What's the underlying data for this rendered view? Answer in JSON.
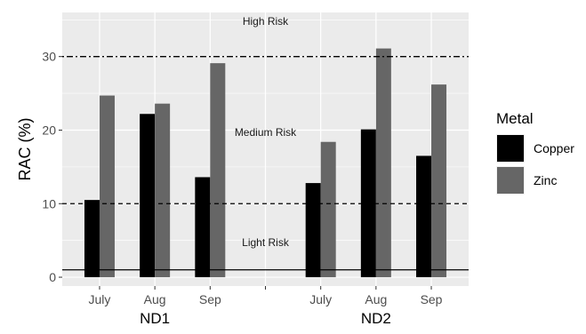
{
  "chart_data": {
    "type": "bar",
    "ylabel": "RAC (%)",
    "ylim": [
      -1.2,
      36
    ],
    "yticks": [
      0,
      10,
      20,
      30
    ],
    "groups": [
      {
        "name": "ND1",
        "categories": [
          "July",
          "Aug",
          "Sep"
        ]
      },
      {
        "name": "ND2",
        "categories": [
          "July",
          "Aug",
          "Sep"
        ]
      }
    ],
    "series": [
      {
        "name": "Copper",
        "color": "#000000",
        "values": [
          10.5,
          22.2,
          13.6,
          12.8,
          20.1,
          16.5
        ]
      },
      {
        "name": "Zinc",
        "color": "#666666",
        "values": [
          24.7,
          23.6,
          29.1,
          18.4,
          31.1,
          26.2
        ]
      }
    ],
    "reference_lines": [
      {
        "y": 30,
        "style": "dotdash"
      },
      {
        "y": 10,
        "style": "dashed"
      },
      {
        "y": 1,
        "style": "solid"
      }
    ],
    "annotations": [
      {
        "text": "High Risk",
        "y": 34.8,
        "group_position": "center"
      },
      {
        "text": "Medium Risk",
        "y": 19.7,
        "group_position": "center"
      },
      {
        "text": "Light Risk",
        "y": 4.7,
        "group_position": "center"
      }
    ],
    "legend": {
      "title": "Metal",
      "placement": "right"
    },
    "colors": {
      "panel_background": "#ebebeb",
      "gridline": "#ffffff"
    }
  }
}
